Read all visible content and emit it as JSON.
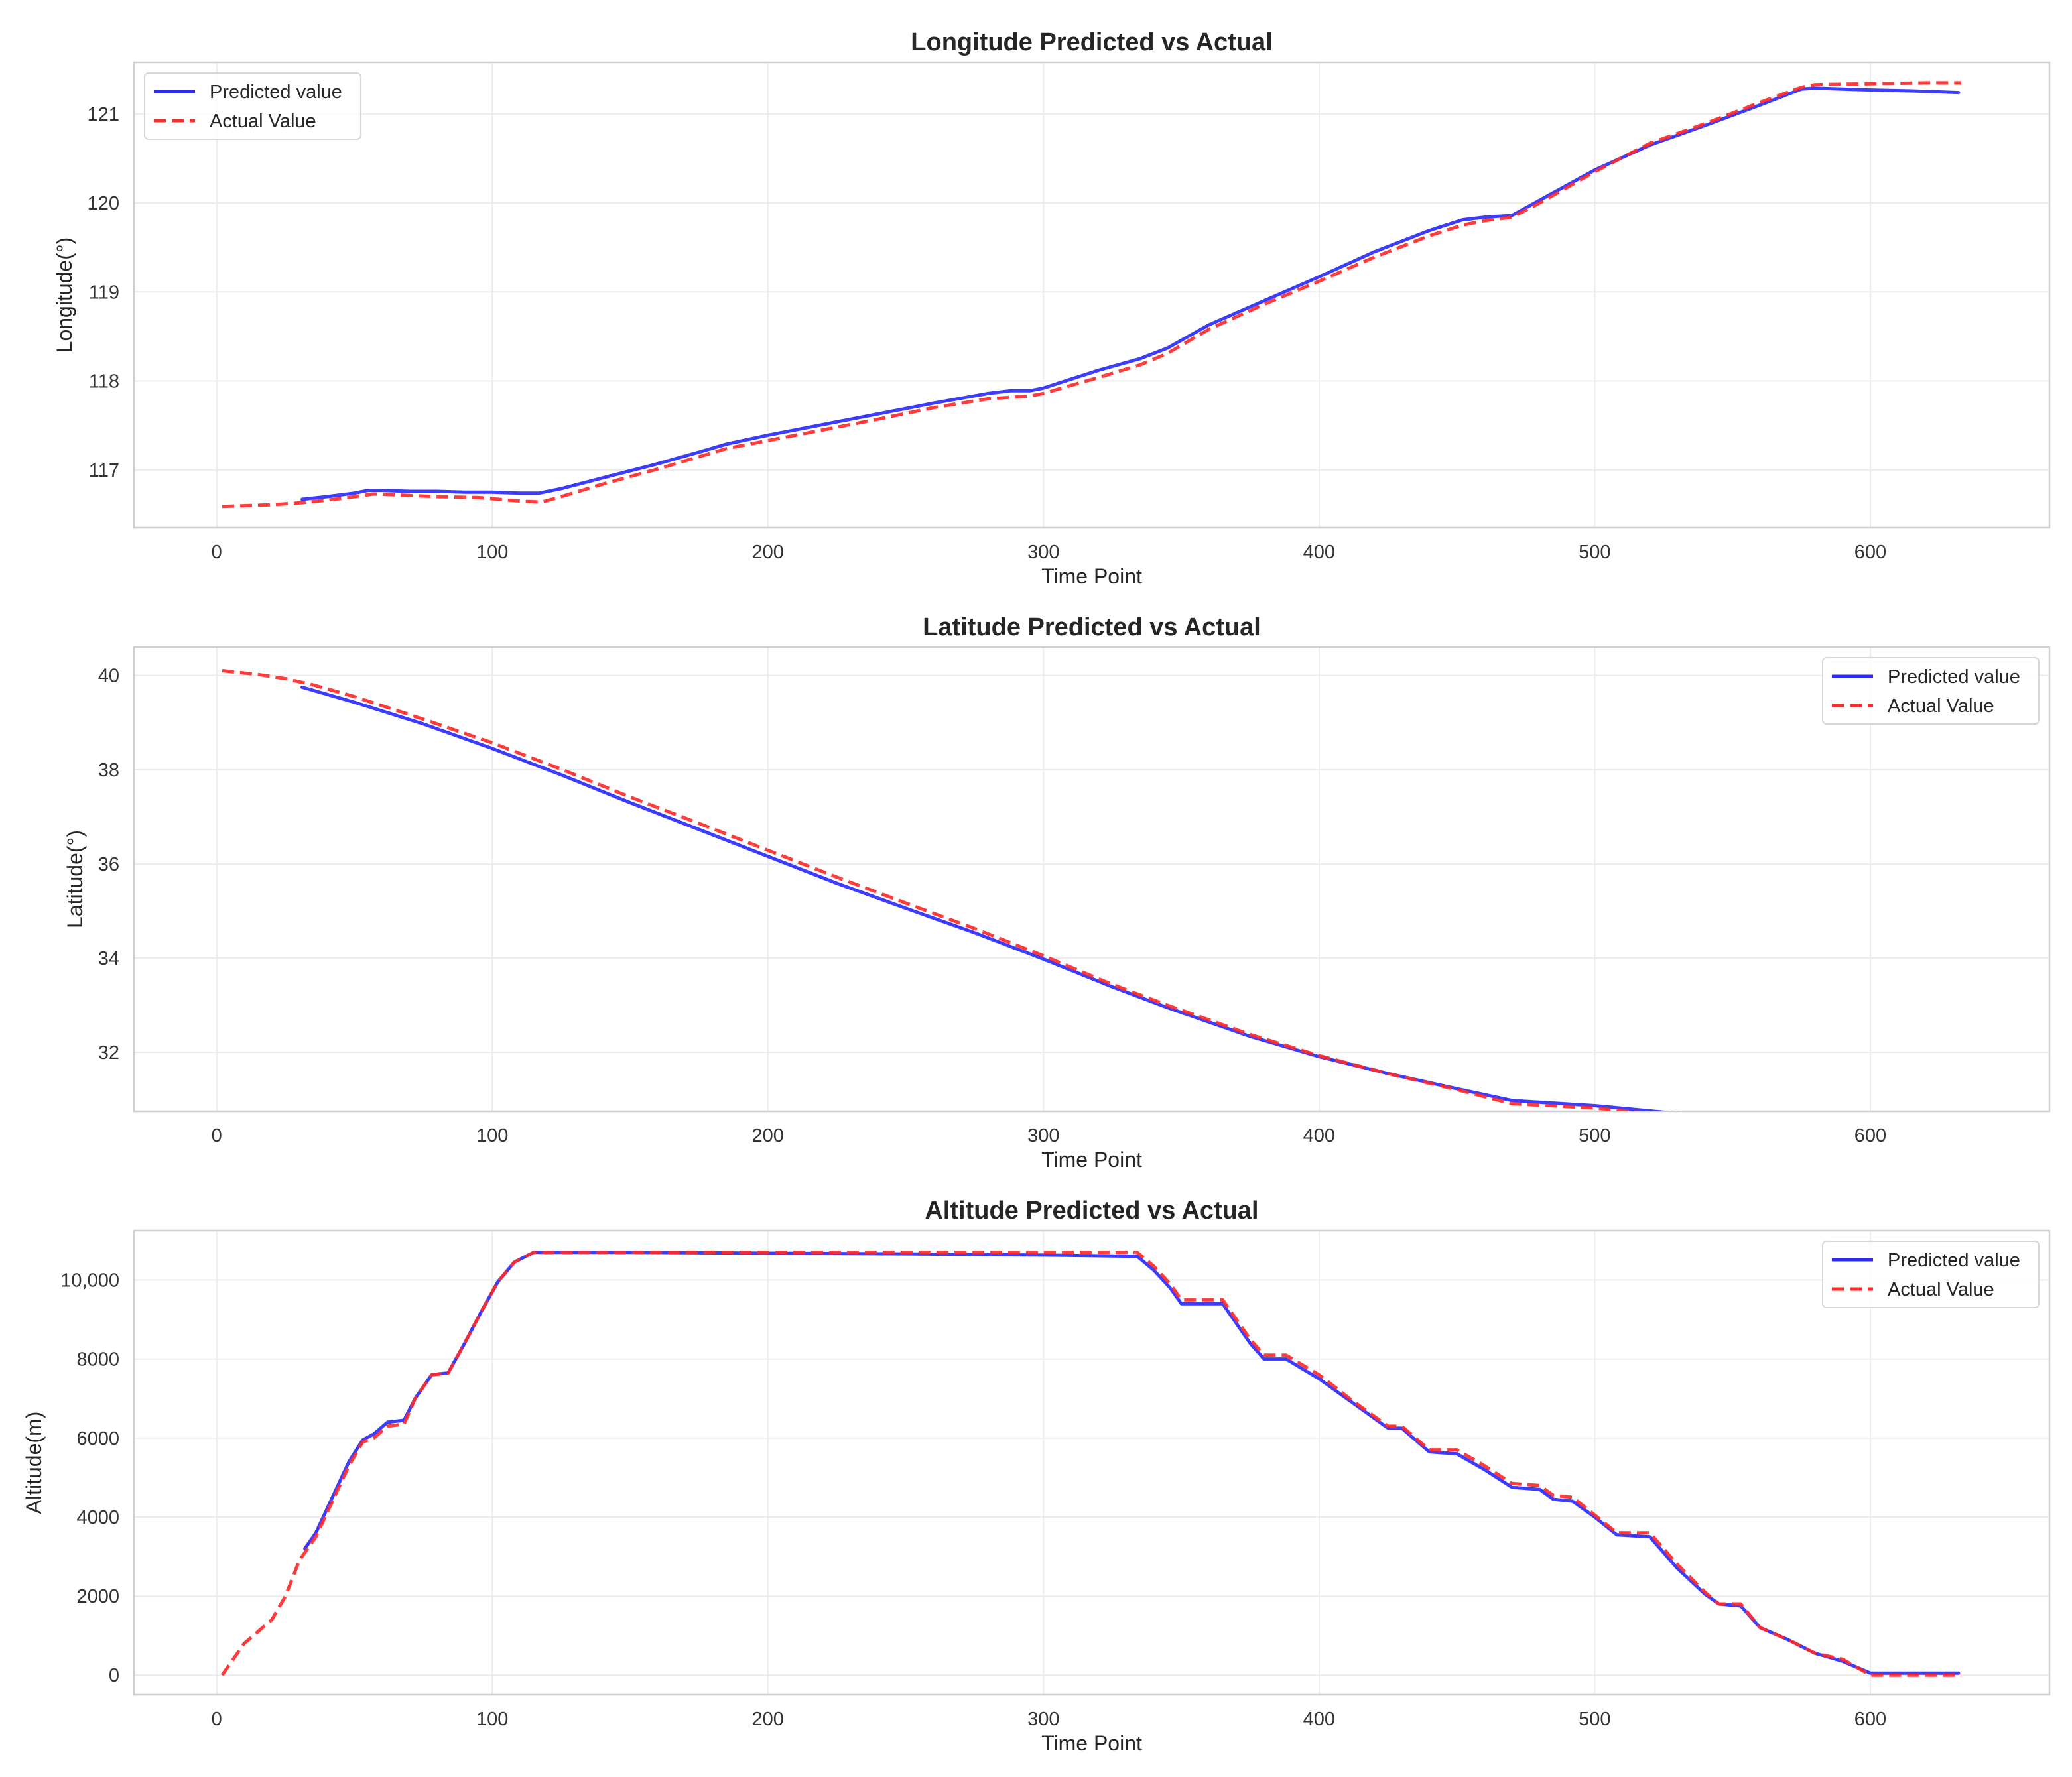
{
  "chart_data": [
    {
      "type": "line",
      "title": "Longitude Predicted vs Actual",
      "xlabel": "Time Point",
      "ylabel": "Longitude(°)",
      "xlim": [
        -30,
        665
      ],
      "ylim": [
        116.35,
        121.58
      ],
      "xticks": [
        0,
        100,
        200,
        300,
        400,
        500,
        600
      ],
      "yticks": [
        117,
        118,
        119,
        120,
        121
      ],
      "ytick_labels": [
        "117",
        "118",
        "119",
        "120",
        "121"
      ],
      "grid": true,
      "legend": "top-left",
      "series": [
        {
          "name": "Predicted value",
          "color": "#2b2bff",
          "style": "solid",
          "x": [
            31,
            40,
            50,
            55,
            60,
            70,
            80,
            90,
            100,
            110,
            117,
            125,
            140,
            160,
            175,
            185,
            200,
            220,
            240,
            260,
            280,
            288,
            295,
            300,
            310,
            320,
            335,
            345,
            360,
            380,
            400,
            420,
            440,
            452,
            460,
            470,
            480,
            500,
            520,
            540,
            560,
            575,
            580,
            590,
            600,
            615,
            632
          ],
          "y": [
            116.67,
            116.7,
            116.74,
            116.77,
            116.77,
            116.76,
            116.76,
            116.75,
            116.75,
            116.74,
            116.74,
            116.79,
            116.91,
            117.07,
            117.2,
            117.29,
            117.39,
            117.51,
            117.63,
            117.75,
            117.86,
            117.89,
            117.89,
            117.92,
            118.02,
            118.12,
            118.25,
            118.37,
            118.63,
            118.9,
            119.17,
            119.45,
            119.69,
            119.81,
            119.84,
            119.86,
            120.03,
            120.37,
            120.65,
            120.87,
            121.1,
            121.28,
            121.29,
            121.28,
            121.27,
            121.26,
            121.24
          ]
        },
        {
          "name": "Actual Value",
          "color": "#ff2a2a",
          "style": "dashed",
          "x": [
            2,
            20,
            30,
            40,
            50,
            57,
            65,
            80,
            95,
            110,
            118,
            125,
            140,
            160,
            185,
            200,
            220,
            240,
            260,
            280,
            295,
            300,
            310,
            320,
            335,
            345,
            360,
            380,
            400,
            420,
            440,
            452,
            460,
            470,
            480,
            500,
            520,
            540,
            560,
            575,
            580,
            600,
            620,
            633
          ],
          "y": [
            116.59,
            116.61,
            116.63,
            116.66,
            116.7,
            116.73,
            116.72,
            116.7,
            116.69,
            116.65,
            116.64,
            116.7,
            116.84,
            117.01,
            117.24,
            117.33,
            117.45,
            117.57,
            117.7,
            117.8,
            117.83,
            117.86,
            117.95,
            118.04,
            118.18,
            118.31,
            118.58,
            118.86,
            119.12,
            119.39,
            119.63,
            119.75,
            119.8,
            119.84,
            120.0,
            120.35,
            120.67,
            120.89,
            121.13,
            121.3,
            121.33,
            121.34,
            121.35,
            121.35
          ]
        }
      ]
    },
    {
      "type": "line",
      "title": "Latitude Predicted vs Actual",
      "xlabel": "Time Point",
      "ylabel": "Latitude(°)",
      "xlim": [
        -30,
        665
      ],
      "ylim": [
        30.75,
        40.6
      ],
      "xticks": [
        0,
        100,
        200,
        300,
        400,
        500,
        600
      ],
      "yticks": [
        32,
        34,
        36,
        38,
        40
      ],
      "ytick_labels": [
        "32",
        "34",
        "36",
        "38",
        "40"
      ],
      "grid": true,
      "legend": "top-right",
      "series": [
        {
          "name": "Predicted value",
          "color": "#2b2bff",
          "style": "solid",
          "x": [
            31,
            50,
            75,
            100,
            125,
            150,
            175,
            200,
            225,
            250,
            275,
            300,
            325,
            345,
            375,
            400,
            425,
            450,
            470,
            500,
            525,
            550,
            575,
            600,
            630
          ],
          "y": [
            39.75,
            39.43,
            38.97,
            38.45,
            37.89,
            37.3,
            36.73,
            36.16,
            35.59,
            35.06,
            34.54,
            33.98,
            33.39,
            32.95,
            32.34,
            31.91,
            31.55,
            31.23,
            30.98,
            30.87,
            30.73,
            30.66,
            30.63,
            30.54,
            30.6
          ]
        },
        {
          "name": "Actual Value",
          "color": "#ff2a2a",
          "style": "dashed",
          "x": [
            2,
            15,
            25,
            35,
            50,
            75,
            100,
            125,
            150,
            175,
            200,
            225,
            250,
            275,
            300,
            325,
            345,
            375,
            400,
            425,
            450,
            470,
            500,
            525,
            550,
            575,
            600,
            633
          ],
          "y": [
            40.1,
            40.02,
            39.93,
            39.8,
            39.55,
            39.07,
            38.57,
            38.01,
            37.42,
            36.86,
            36.29,
            35.72,
            35.17,
            34.63,
            34.05,
            33.44,
            33.0,
            32.38,
            31.93,
            31.55,
            31.21,
            30.91,
            30.82,
            30.68,
            30.6,
            30.55,
            30.42,
            30.4
          ]
        }
      ]
    },
    {
      "type": "line",
      "title": "Altitude Predicted vs Actual",
      "xlabel": "Time Point",
      "ylabel": "Altitude(m)",
      "xlim": [
        -30,
        665
      ],
      "ylim": [
        -500,
        11250
      ],
      "xticks": [
        0,
        100,
        200,
        300,
        400,
        500,
        600
      ],
      "yticks": [
        0,
        2000,
        4000,
        6000,
        8000,
        10000
      ],
      "ytick_labels": [
        "0",
        "2000",
        "4000",
        "6000",
        "8000",
        "10,000"
      ],
      "grid": true,
      "legend": "top-right",
      "series": [
        {
          "name": "Predicted value",
          "color": "#2b2bff",
          "style": "solid",
          "x": [
            32,
            36,
            42,
            48,
            53,
            57,
            62,
            68,
            72,
            78,
            84,
            90,
            96,
            102,
            108,
            115,
            150,
            200,
            250,
            300,
            334,
            340,
            346,
            350,
            365,
            375,
            380,
            388,
            400,
            412,
            425,
            430,
            440,
            450,
            460,
            470,
            480,
            485,
            492,
            500,
            508,
            520,
            530,
            540,
            545,
            553,
            560,
            570,
            580,
            590,
            600,
            632
          ],
          "y": [
            3200,
            3600,
            4500,
            5400,
            5950,
            6100,
            6400,
            6450,
            7000,
            7600,
            7650,
            8400,
            9200,
            9950,
            10450,
            10700,
            10700,
            10680,
            10660,
            10630,
            10600,
            10250,
            9800,
            9400,
            9400,
            8400,
            8000,
            8000,
            7500,
            6900,
            6250,
            6250,
            5650,
            5600,
            5200,
            4750,
            4700,
            4450,
            4400,
            4000,
            3550,
            3500,
            2700,
            2050,
            1800,
            1750,
            1200,
            900,
            550,
            350,
            50,
            50
          ]
        },
        {
          "name": "Actual Value",
          "color": "#ff2a2a",
          "style": "dashed",
          "x": [
            2,
            5,
            10,
            15,
            20,
            25,
            30,
            36,
            42,
            48,
            53,
            57,
            62,
            68,
            72,
            78,
            84,
            90,
            96,
            102,
            108,
            115,
            150,
            200,
            250,
            300,
            334,
            340,
            346,
            350,
            365,
            375,
            380,
            388,
            400,
            412,
            425,
            430,
            440,
            450,
            460,
            470,
            480,
            485,
            492,
            500,
            508,
            520,
            530,
            540,
            545,
            553,
            560,
            570,
            580,
            590,
            600,
            633
          ],
          "y": [
            0,
            300,
            800,
            1100,
            1400,
            2000,
            2900,
            3500,
            4400,
            5300,
            5900,
            6000,
            6300,
            6350,
            7000,
            7600,
            7650,
            8400,
            9200,
            9950,
            10450,
            10700,
            10700,
            10700,
            10700,
            10700,
            10700,
            10350,
            9900,
            9500,
            9500,
            8500,
            8100,
            8100,
            7600,
            6950,
            6300,
            6300,
            5700,
            5700,
            5300,
            4850,
            4800,
            4550,
            4500,
            4050,
            3600,
            3600,
            2800,
            2100,
            1800,
            1800,
            1200,
            900,
            550,
            400,
            0,
            0
          ]
        }
      ]
    }
  ]
}
